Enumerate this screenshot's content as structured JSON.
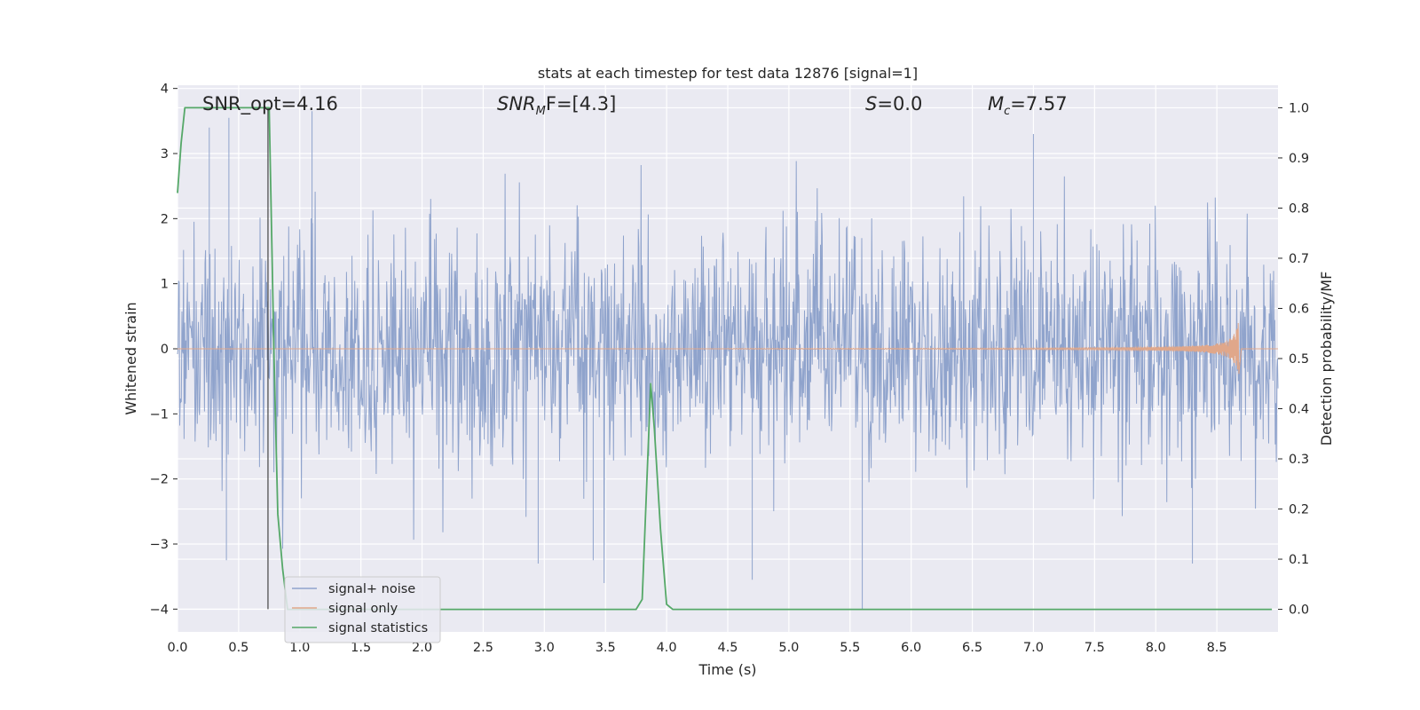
{
  "chart_data": {
    "type": "line",
    "title": "stats at each timestep for test data 12876 [signal=1]",
    "xlabel": "Time (s)",
    "ylabel": "Whitened strain",
    "ylabel_right": "Detection probability/MF",
    "xlim": [
      0.0,
      9.0
    ],
    "ylim": [
      -4.35,
      4.05
    ],
    "ylim_right": [
      -0.045,
      1.045
    ],
    "x_ticks": [
      "0.0",
      "0.5",
      "1.0",
      "1.5",
      "2.0",
      "2.5",
      "3.0",
      "3.5",
      "4.0",
      "4.5",
      "5.0",
      "5.5",
      "6.0",
      "6.5",
      "7.0",
      "7.5",
      "8.0",
      "8.5"
    ],
    "y_ticks": [
      "−4",
      "−3",
      "−2",
      "−1",
      "0",
      "1",
      "2",
      "3",
      "4"
    ],
    "y_ticks_right": [
      "0.0",
      "0.1",
      "0.2",
      "0.3",
      "0.4",
      "0.5",
      "0.6",
      "0.7",
      "0.8",
      "0.9",
      "1.0"
    ],
    "grid": true,
    "legend_position": "lower-left",
    "annotations": {
      "snr_opt": "SNR_opt=4.16",
      "snr_mf_base": "SNR",
      "snr_mf_sub": "M",
      "snr_mf_rest": "F=[4.3]",
      "s_sym": "S",
      "s_rest": "=0.0",
      "mc_base": "M",
      "mc_sub": "c",
      "mc_rest": "=7.57"
    },
    "marker_line_x": 0.74,
    "series": [
      {
        "name": "signal+ noise",
        "color": "#8fa3cc",
        "axis": "left",
        "kind": "noise",
        "envelope_typical": [
          -1.7,
          1.7
        ],
        "extremes": [
          -4.0,
          3.65
        ]
      },
      {
        "name": "signal only",
        "color": "#e0a78a",
        "axis": "left",
        "kind": "chirp",
        "onset": 4.5,
        "merger": 8.68,
        "peak_amplitude": 0.48
      },
      {
        "name": "signal statistics",
        "color": "#55a868",
        "axis": "right",
        "x": [
          0.0,
          0.03,
          0.06,
          0.1,
          0.2,
          0.35,
          0.5,
          0.65,
          0.73,
          0.75,
          0.79,
          0.82,
          0.86,
          0.9,
          1.0,
          2.0,
          3.0,
          3.7,
          3.75,
          3.8,
          3.87,
          3.9,
          3.95,
          4.0,
          4.05,
          4.1,
          5.0,
          6.0,
          7.0,
          8.0,
          8.95
        ],
        "y": [
          0.83,
          0.93,
          1.0,
          1.0,
          1.0,
          1.0,
          1.0,
          1.0,
          1.0,
          1.0,
          0.5,
          0.19,
          0.08,
          0.0,
          0.0,
          0.0,
          0.0,
          0.0,
          0.0,
          0.02,
          0.45,
          0.36,
          0.16,
          0.01,
          0.0,
          0.0,
          0.0,
          0.0,
          0.0,
          0.0,
          0.0
        ]
      }
    ]
  }
}
